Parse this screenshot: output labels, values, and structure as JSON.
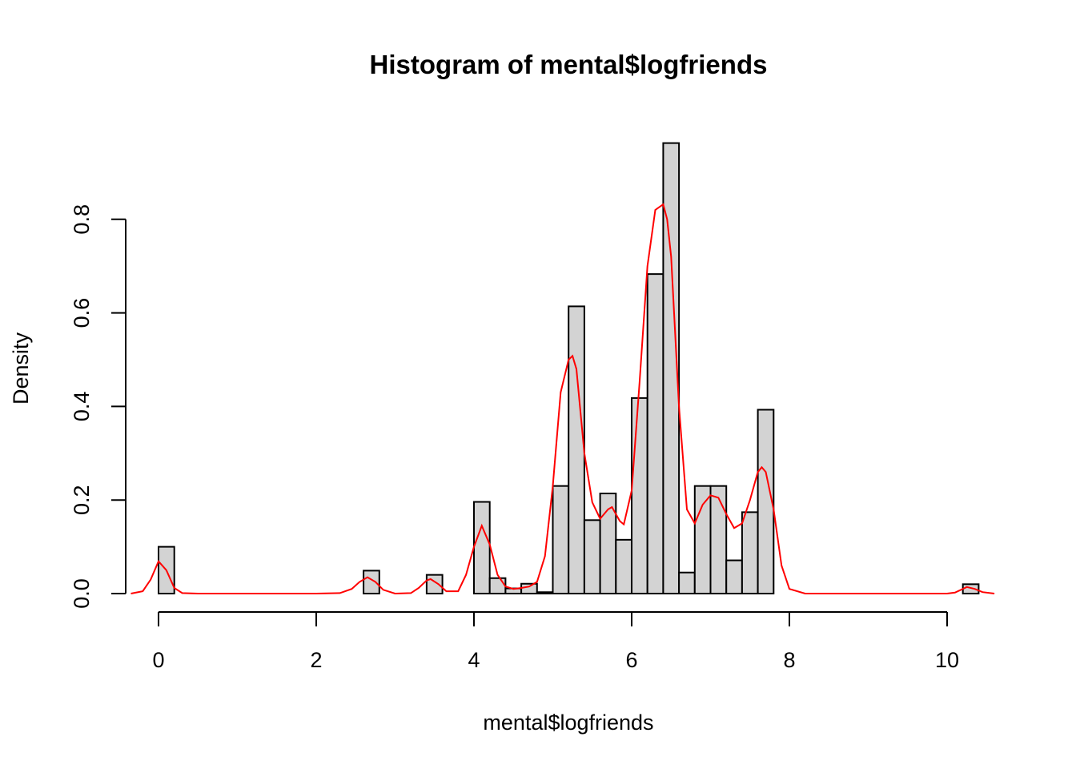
{
  "chart_data": {
    "type": "bar",
    "title": "Histogram of mental$logfriends",
    "xlabel": "mental$logfriends",
    "ylabel": "Density",
    "xlim": [
      0,
      10.4
    ],
    "ylim": [
      0,
      0.96
    ],
    "x_ticks": [
      "0",
      "2",
      "4",
      "6",
      "8",
      "10"
    ],
    "y_ticks": [
      "0.0",
      "0.2",
      "0.4",
      "0.6",
      "0.8"
    ],
    "grid": false,
    "legend": "none",
    "bin_width": 0.2,
    "series": [
      {
        "kind": "histogram",
        "color": "#d3d3d3",
        "bins": [
          {
            "x0": 0.0,
            "x1": 0.2,
            "density": 0.1
          },
          {
            "x0": 2.6,
            "x1": 2.8,
            "density": 0.049
          },
          {
            "x0": 3.4,
            "x1": 3.6,
            "density": 0.04
          },
          {
            "x0": 4.0,
            "x1": 4.2,
            "density": 0.196
          },
          {
            "x0": 4.2,
            "x1": 4.4,
            "density": 0.033
          },
          {
            "x0": 4.4,
            "x1": 4.6,
            "density": 0.011
          },
          {
            "x0": 4.6,
            "x1": 4.8,
            "density": 0.021
          },
          {
            "x0": 4.8,
            "x1": 5.0,
            "density": 0.003
          },
          {
            "x0": 5.0,
            "x1": 5.2,
            "density": 0.23
          },
          {
            "x0": 5.2,
            "x1": 5.4,
            "density": 0.614
          },
          {
            "x0": 5.4,
            "x1": 5.6,
            "density": 0.157
          },
          {
            "x0": 5.6,
            "x1": 5.8,
            "density": 0.214
          },
          {
            "x0": 5.8,
            "x1": 6.0,
            "density": 0.115
          },
          {
            "x0": 6.0,
            "x1": 6.2,
            "density": 0.418
          },
          {
            "x0": 6.2,
            "x1": 6.4,
            "density": 0.683
          },
          {
            "x0": 6.4,
            "x1": 6.6,
            "density": 0.963
          },
          {
            "x0": 6.6,
            "x1": 6.8,
            "density": 0.045
          },
          {
            "x0": 6.8,
            "x1": 7.0,
            "density": 0.23
          },
          {
            "x0": 7.0,
            "x1": 7.2,
            "density": 0.23
          },
          {
            "x0": 7.2,
            "x1": 7.4,
            "density": 0.071
          },
          {
            "x0": 7.4,
            "x1": 7.6,
            "density": 0.174
          },
          {
            "x0": 7.6,
            "x1": 7.8,
            "density": 0.393
          },
          {
            "x0": 10.2,
            "x1": 10.4,
            "density": 0.02
          }
        ]
      },
      {
        "kind": "density-line",
        "color": "#ff0000",
        "x": [
          -0.35,
          -0.2,
          -0.1,
          0.0,
          0.1,
          0.2,
          0.3,
          0.5,
          1.0,
          2.0,
          2.3,
          2.45,
          2.55,
          2.65,
          2.75,
          2.85,
          3.0,
          3.2,
          3.3,
          3.4,
          3.45,
          3.55,
          3.65,
          3.8,
          3.9,
          4.0,
          4.1,
          4.2,
          4.3,
          4.4,
          4.5,
          4.6,
          4.7,
          4.8,
          4.9,
          5.0,
          5.1,
          5.2,
          5.25,
          5.3,
          5.4,
          5.5,
          5.6,
          5.7,
          5.75,
          5.85,
          5.9,
          6.0,
          6.1,
          6.2,
          6.3,
          6.4,
          6.45,
          6.5,
          6.6,
          6.7,
          6.8,
          6.9,
          7.0,
          7.1,
          7.2,
          7.3,
          7.4,
          7.5,
          7.6,
          7.65,
          7.7,
          7.8,
          7.9,
          8.0,
          8.2,
          9.0,
          10.0,
          10.1,
          10.2,
          10.25,
          10.35,
          10.45,
          10.6
        ],
        "y": [
          0.0,
          0.005,
          0.03,
          0.069,
          0.05,
          0.012,
          0.001,
          0.0,
          0.0,
          0.0,
          0.001,
          0.01,
          0.025,
          0.035,
          0.025,
          0.008,
          0.0,
          0.001,
          0.012,
          0.028,
          0.031,
          0.02,
          0.005,
          0.005,
          0.04,
          0.1,
          0.145,
          0.105,
          0.04,
          0.015,
          0.01,
          0.012,
          0.015,
          0.025,
          0.08,
          0.23,
          0.43,
          0.5,
          0.508,
          0.48,
          0.3,
          0.195,
          0.16,
          0.18,
          0.185,
          0.155,
          0.148,
          0.22,
          0.45,
          0.7,
          0.82,
          0.832,
          0.8,
          0.72,
          0.4,
          0.18,
          0.15,
          0.19,
          0.21,
          0.205,
          0.17,
          0.14,
          0.15,
          0.2,
          0.26,
          0.27,
          0.26,
          0.18,
          0.06,
          0.01,
          0.0,
          0.0,
          0.0,
          0.002,
          0.01,
          0.014,
          0.01,
          0.003,
          0.0
        ]
      }
    ]
  }
}
